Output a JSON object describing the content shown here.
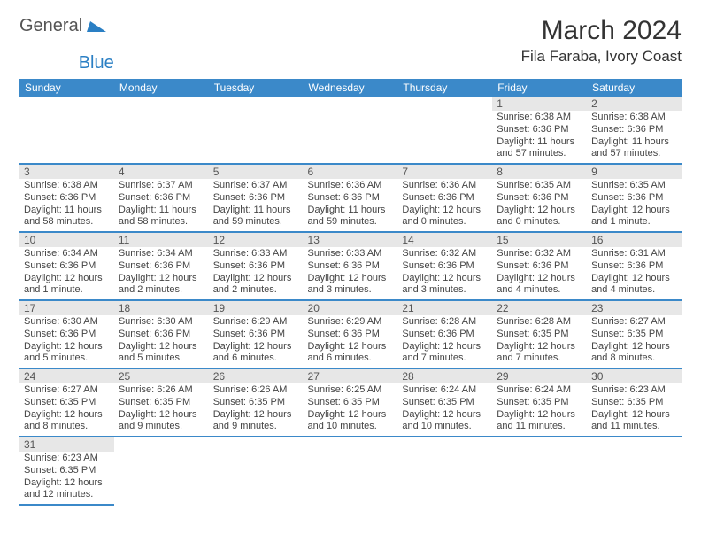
{
  "logo": {
    "text_a": "General",
    "text_b": "Blue",
    "shape_color": "#2a7fc4"
  },
  "title": "March 2024",
  "location": "Fila Faraba, Ivory Coast",
  "header_bg": "#3b89c9",
  "header_text_color": "#ffffff",
  "daynum_bg": "#e7e7e7",
  "border_color": "#3b89c9",
  "days_of_week": [
    "Sunday",
    "Monday",
    "Tuesday",
    "Wednesday",
    "Thursday",
    "Friday",
    "Saturday"
  ],
  "weeks": [
    [
      {
        "n": "",
        "lines": [
          "",
          "",
          "",
          ""
        ]
      },
      {
        "n": "",
        "lines": [
          "",
          "",
          "",
          ""
        ]
      },
      {
        "n": "",
        "lines": [
          "",
          "",
          "",
          ""
        ]
      },
      {
        "n": "",
        "lines": [
          "",
          "",
          "",
          ""
        ]
      },
      {
        "n": "",
        "lines": [
          "",
          "",
          "",
          ""
        ]
      },
      {
        "n": "1",
        "lines": [
          "Sunrise: 6:38 AM",
          "Sunset: 6:36 PM",
          "Daylight: 11 hours",
          "and 57 minutes."
        ]
      },
      {
        "n": "2",
        "lines": [
          "Sunrise: 6:38 AM",
          "Sunset: 6:36 PM",
          "Daylight: 11 hours",
          "and 57 minutes."
        ]
      }
    ],
    [
      {
        "n": "3",
        "lines": [
          "Sunrise: 6:38 AM",
          "Sunset: 6:36 PM",
          "Daylight: 11 hours",
          "and 58 minutes."
        ]
      },
      {
        "n": "4",
        "lines": [
          "Sunrise: 6:37 AM",
          "Sunset: 6:36 PM",
          "Daylight: 11 hours",
          "and 58 minutes."
        ]
      },
      {
        "n": "5",
        "lines": [
          "Sunrise: 6:37 AM",
          "Sunset: 6:36 PM",
          "Daylight: 11 hours",
          "and 59 minutes."
        ]
      },
      {
        "n": "6",
        "lines": [
          "Sunrise: 6:36 AM",
          "Sunset: 6:36 PM",
          "Daylight: 11 hours",
          "and 59 minutes."
        ]
      },
      {
        "n": "7",
        "lines": [
          "Sunrise: 6:36 AM",
          "Sunset: 6:36 PM",
          "Daylight: 12 hours",
          "and 0 minutes."
        ]
      },
      {
        "n": "8",
        "lines": [
          "Sunrise: 6:35 AM",
          "Sunset: 6:36 PM",
          "Daylight: 12 hours",
          "and 0 minutes."
        ]
      },
      {
        "n": "9",
        "lines": [
          "Sunrise: 6:35 AM",
          "Sunset: 6:36 PM",
          "Daylight: 12 hours",
          "and 1 minute."
        ]
      }
    ],
    [
      {
        "n": "10",
        "lines": [
          "Sunrise: 6:34 AM",
          "Sunset: 6:36 PM",
          "Daylight: 12 hours",
          "and 1 minute."
        ]
      },
      {
        "n": "11",
        "lines": [
          "Sunrise: 6:34 AM",
          "Sunset: 6:36 PM",
          "Daylight: 12 hours",
          "and 2 minutes."
        ]
      },
      {
        "n": "12",
        "lines": [
          "Sunrise: 6:33 AM",
          "Sunset: 6:36 PM",
          "Daylight: 12 hours",
          "and 2 minutes."
        ]
      },
      {
        "n": "13",
        "lines": [
          "Sunrise: 6:33 AM",
          "Sunset: 6:36 PM",
          "Daylight: 12 hours",
          "and 3 minutes."
        ]
      },
      {
        "n": "14",
        "lines": [
          "Sunrise: 6:32 AM",
          "Sunset: 6:36 PM",
          "Daylight: 12 hours",
          "and 3 minutes."
        ]
      },
      {
        "n": "15",
        "lines": [
          "Sunrise: 6:32 AM",
          "Sunset: 6:36 PM",
          "Daylight: 12 hours",
          "and 4 minutes."
        ]
      },
      {
        "n": "16",
        "lines": [
          "Sunrise: 6:31 AM",
          "Sunset: 6:36 PM",
          "Daylight: 12 hours",
          "and 4 minutes."
        ]
      }
    ],
    [
      {
        "n": "17",
        "lines": [
          "Sunrise: 6:30 AM",
          "Sunset: 6:36 PM",
          "Daylight: 12 hours",
          "and 5 minutes."
        ]
      },
      {
        "n": "18",
        "lines": [
          "Sunrise: 6:30 AM",
          "Sunset: 6:36 PM",
          "Daylight: 12 hours",
          "and 5 minutes."
        ]
      },
      {
        "n": "19",
        "lines": [
          "Sunrise: 6:29 AM",
          "Sunset: 6:36 PM",
          "Daylight: 12 hours",
          "and 6 minutes."
        ]
      },
      {
        "n": "20",
        "lines": [
          "Sunrise: 6:29 AM",
          "Sunset: 6:36 PM",
          "Daylight: 12 hours",
          "and 6 minutes."
        ]
      },
      {
        "n": "21",
        "lines": [
          "Sunrise: 6:28 AM",
          "Sunset: 6:36 PM",
          "Daylight: 12 hours",
          "and 7 minutes."
        ]
      },
      {
        "n": "22",
        "lines": [
          "Sunrise: 6:28 AM",
          "Sunset: 6:35 PM",
          "Daylight: 12 hours",
          "and 7 minutes."
        ]
      },
      {
        "n": "23",
        "lines": [
          "Sunrise: 6:27 AM",
          "Sunset: 6:35 PM",
          "Daylight: 12 hours",
          "and 8 minutes."
        ]
      }
    ],
    [
      {
        "n": "24",
        "lines": [
          "Sunrise: 6:27 AM",
          "Sunset: 6:35 PM",
          "Daylight: 12 hours",
          "and 8 minutes."
        ]
      },
      {
        "n": "25",
        "lines": [
          "Sunrise: 6:26 AM",
          "Sunset: 6:35 PM",
          "Daylight: 12 hours",
          "and 9 minutes."
        ]
      },
      {
        "n": "26",
        "lines": [
          "Sunrise: 6:26 AM",
          "Sunset: 6:35 PM",
          "Daylight: 12 hours",
          "and 9 minutes."
        ]
      },
      {
        "n": "27",
        "lines": [
          "Sunrise: 6:25 AM",
          "Sunset: 6:35 PM",
          "Daylight: 12 hours",
          "and 10 minutes."
        ]
      },
      {
        "n": "28",
        "lines": [
          "Sunrise: 6:24 AM",
          "Sunset: 6:35 PM",
          "Daylight: 12 hours",
          "and 10 minutes."
        ]
      },
      {
        "n": "29",
        "lines": [
          "Sunrise: 6:24 AM",
          "Sunset: 6:35 PM",
          "Daylight: 12 hours",
          "and 11 minutes."
        ]
      },
      {
        "n": "30",
        "lines": [
          "Sunrise: 6:23 AM",
          "Sunset: 6:35 PM",
          "Daylight: 12 hours",
          "and 11 minutes."
        ]
      }
    ],
    [
      {
        "n": "31",
        "lines": [
          "Sunrise: 6:23 AM",
          "Sunset: 6:35 PM",
          "Daylight: 12 hours",
          "and 12 minutes."
        ]
      },
      {
        "n": "",
        "lines": [
          "",
          "",
          "",
          ""
        ]
      },
      {
        "n": "",
        "lines": [
          "",
          "",
          "",
          ""
        ]
      },
      {
        "n": "",
        "lines": [
          "",
          "",
          "",
          ""
        ]
      },
      {
        "n": "",
        "lines": [
          "",
          "",
          "",
          ""
        ]
      },
      {
        "n": "",
        "lines": [
          "",
          "",
          "",
          ""
        ]
      },
      {
        "n": "",
        "lines": [
          "",
          "",
          "",
          ""
        ]
      }
    ]
  ]
}
